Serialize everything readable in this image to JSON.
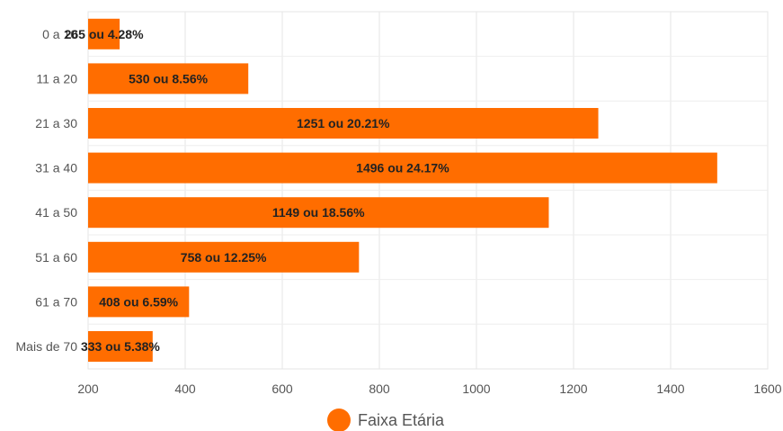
{
  "chart_data": {
    "type": "bar",
    "orientation": "horizontal",
    "categories": [
      "0 a 10",
      "11 a 20",
      "21 a 30",
      "31 a 40",
      "41 a 50",
      "51 a 60",
      "61 a 70",
      "Mais de 70"
    ],
    "series": [
      {
        "name": "Faixa Etária",
        "values": [
          265,
          530,
          1251,
          1496,
          1149,
          758,
          408,
          333
        ],
        "labels": [
          "265 ou 4.28%",
          "530 ou 8.56%",
          "1251 ou 20.21%",
          "1496 ou 24.17%",
          "1149 ou 18.56%",
          "758 ou 12.25%",
          "408 ou 6.59%",
          "333 ou 5.38%"
        ]
      }
    ],
    "x_ticks": [
      "200",
      "400",
      "600",
      "800",
      "1000",
      "1200",
      "1400",
      "1600"
    ],
    "xlim": [
      200,
      1600
    ],
    "grid": true,
    "legend_position": "bottom",
    "color": "#FF6D00"
  }
}
